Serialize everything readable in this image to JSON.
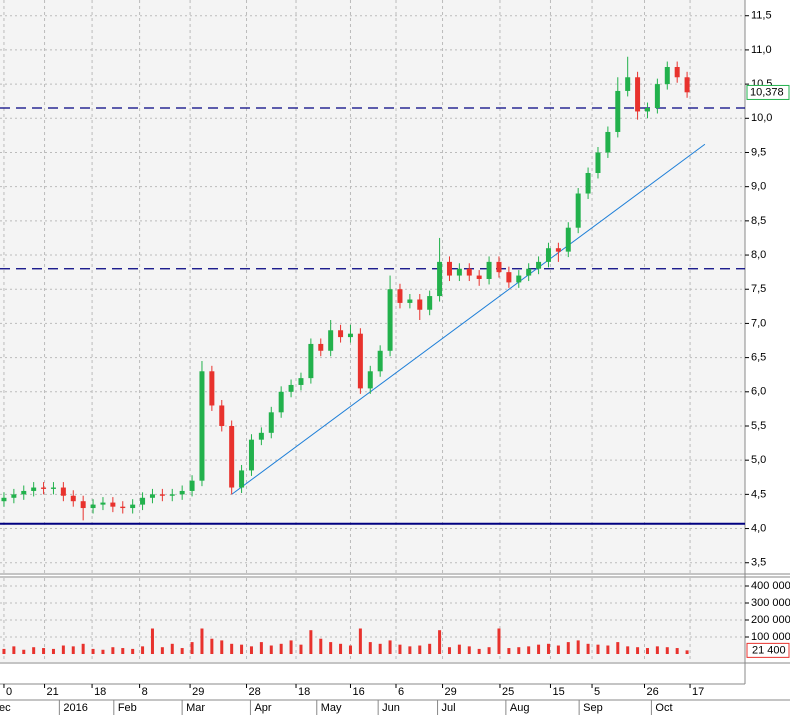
{
  "chart_data": {
    "type": "candlestick",
    "up_color": "#22b14c",
    "down_color": "#e8322d",
    "xlim": [
      -0.4,
      74.85
    ],
    "ylim": [
      3.35,
      11.73
    ],
    "yticks": [
      {
        "value": 3.5,
        "label": "3,5"
      },
      {
        "value": 4.0,
        "label": "4,0"
      },
      {
        "value": 4.5,
        "label": "4,5"
      },
      {
        "value": 5.0,
        "label": "5,0"
      },
      {
        "value": 5.5,
        "label": "5,5"
      },
      {
        "value": 6.0,
        "label": "6,0"
      },
      {
        "value": 6.5,
        "label": "6,5"
      },
      {
        "value": 7.0,
        "label": "7,0"
      },
      {
        "value": 7.5,
        "label": "7,5"
      },
      {
        "value": 8.0,
        "label": "8,0"
      },
      {
        "value": 8.5,
        "label": "8,5"
      },
      {
        "value": 9.0,
        "label": "9,0"
      },
      {
        "value": 9.5,
        "label": "9,5"
      },
      {
        "value": 10.0,
        "label": "10,0"
      },
      {
        "value": 10.5,
        "label": "10,5"
      },
      {
        "value": 11.0,
        "label": "11,0"
      },
      {
        "value": 11.5,
        "label": "11,5"
      }
    ],
    "xticks": [
      {
        "value": 0,
        "label": "0"
      },
      {
        "value": 4.1,
        "label": "21"
      },
      {
        "value": 8.9,
        "label": "18"
      },
      {
        "value": 13.7,
        "label": "8"
      },
      {
        "value": 18.8,
        "label": "29"
      },
      {
        "value": 24.5,
        "label": "28"
      },
      {
        "value": 29.5,
        "label": "18"
      },
      {
        "value": 35,
        "label": "16"
      },
      {
        "value": 39.6,
        "label": "6"
      },
      {
        "value": 44.3,
        "label": "29"
      },
      {
        "value": 50.1,
        "label": "25"
      },
      {
        "value": 55.2,
        "label": "15"
      },
      {
        "value": 59.4,
        "label": "5"
      },
      {
        "value": 64.7,
        "label": "26"
      },
      {
        "value": 69.3,
        "label": "17"
      }
    ],
    "month_ticks": [
      {
        "value": -1.3,
        "label": "Dec"
      },
      {
        "value": 6.0,
        "label": "2016"
      },
      {
        "value": 11.5,
        "label": "Feb"
      },
      {
        "value": 18.4,
        "label": "Mar"
      },
      {
        "value": 25.3,
        "label": "Apr"
      },
      {
        "value": 32,
        "label": "May"
      },
      {
        "value": 38.2,
        "label": "Jun"
      },
      {
        "value": 44.2,
        "label": "Jul"
      },
      {
        "value": 51.1,
        "label": "Aug"
      },
      {
        "value": 58.5,
        "label": "Sep"
      },
      {
        "value": 65.8,
        "label": "Oct"
      }
    ],
    "values": [
      [
        4.4,
        4.53,
        4.32,
        4.45
      ],
      [
        4.45,
        4.58,
        4.37,
        4.5
      ],
      [
        4.5,
        4.63,
        4.42,
        4.55
      ],
      [
        4.55,
        4.68,
        4.47,
        4.6
      ],
      [
        4.6,
        4.68,
        4.5,
        4.58
      ],
      [
        4.58,
        4.68,
        4.5,
        4.6
      ],
      [
        4.6,
        4.68,
        4.4,
        4.48
      ],
      [
        4.48,
        4.56,
        4.32,
        4.4
      ],
      [
        4.4,
        4.48,
        4.12,
        4.3
      ],
      [
        4.3,
        4.43,
        4.22,
        4.35
      ],
      [
        4.35,
        4.46,
        4.27,
        4.38
      ],
      [
        4.38,
        4.46,
        4.24,
        4.32
      ],
      [
        4.32,
        4.4,
        4.22,
        4.3
      ],
      [
        4.3,
        4.43,
        4.22,
        4.35
      ],
      [
        4.35,
        4.53,
        4.27,
        4.45
      ],
      [
        4.45,
        4.58,
        4.37,
        4.5
      ],
      [
        4.5,
        4.58,
        4.4,
        4.48
      ],
      [
        4.48,
        4.58,
        4.4,
        4.5
      ],
      [
        4.5,
        4.63,
        4.42,
        4.55
      ],
      [
        4.55,
        4.78,
        4.47,
        4.7
      ],
      [
        4.7,
        6.45,
        4.62,
        6.3
      ],
      [
        6.3,
        6.38,
        5.72,
        5.8
      ],
      [
        5.8,
        5.88,
        5.42,
        5.5
      ],
      [
        5.5,
        5.58,
        4.5,
        4.6
      ],
      [
        4.6,
        4.93,
        4.52,
        4.85
      ],
      [
        4.85,
        5.38,
        4.77,
        5.3
      ],
      [
        5.3,
        5.48,
        5.22,
        5.4
      ],
      [
        5.4,
        5.78,
        5.32,
        5.7
      ],
      [
        5.7,
        6.08,
        5.62,
        6.0
      ],
      [
        6.0,
        6.18,
        5.92,
        6.1
      ],
      [
        6.1,
        6.28,
        6.02,
        6.2
      ],
      [
        6.2,
        6.78,
        6.12,
        6.7
      ],
      [
        6.7,
        6.78,
        6.52,
        6.6
      ],
      [
        6.6,
        7.05,
        6.52,
        6.9
      ],
      [
        6.9,
        6.98,
        6.72,
        6.8
      ],
      [
        6.8,
        6.98,
        6.72,
        6.85
      ],
      [
        6.85,
        6.93,
        5.97,
        6.05
      ],
      [
        6.05,
        6.38,
        5.97,
        6.3
      ],
      [
        6.3,
        6.68,
        6.22,
        6.6
      ],
      [
        6.6,
        7.7,
        6.52,
        7.5
      ],
      [
        7.5,
        7.58,
        7.22,
        7.3
      ],
      [
        7.3,
        7.43,
        7.22,
        7.35
      ],
      [
        7.35,
        7.43,
        7.05,
        7.2
      ],
      [
        7.2,
        7.48,
        7.12,
        7.4
      ],
      [
        7.4,
        8.25,
        7.32,
        7.9
      ],
      [
        7.9,
        7.98,
        7.62,
        7.7
      ],
      [
        7.7,
        7.88,
        7.62,
        7.8
      ],
      [
        7.8,
        7.88,
        7.62,
        7.7
      ],
      [
        7.7,
        7.78,
        7.55,
        7.65
      ],
      [
        7.65,
        7.98,
        7.57,
        7.9
      ],
      [
        7.9,
        7.98,
        7.67,
        7.75
      ],
      [
        7.75,
        7.83,
        7.52,
        7.6
      ],
      [
        7.6,
        7.78,
        7.52,
        7.7
      ],
      [
        7.7,
        7.88,
        7.62,
        7.8
      ],
      [
        7.8,
        7.98,
        7.72,
        7.9
      ],
      [
        7.9,
        8.18,
        7.82,
        8.1
      ],
      [
        8.1,
        8.18,
        7.9,
        8.05
      ],
      [
        8.05,
        8.48,
        7.97,
        8.4
      ],
      [
        8.4,
        8.98,
        8.32,
        8.9
      ],
      [
        8.9,
        9.28,
        8.82,
        9.2
      ],
      [
        9.2,
        9.58,
        9.12,
        9.5
      ],
      [
        9.5,
        9.88,
        9.42,
        9.8
      ],
      [
        9.8,
        10.6,
        9.72,
        10.4
      ],
      [
        10.4,
        10.9,
        10.32,
        10.6
      ],
      [
        10.6,
        10.68,
        9.98,
        10.1
      ],
      [
        10.1,
        10.23,
        10.0,
        10.15
      ],
      [
        10.15,
        10.58,
        10.07,
        10.5
      ],
      [
        10.5,
        10.83,
        10.42,
        10.75
      ],
      [
        10.75,
        10.83,
        10.52,
        10.6
      ],
      [
        10.6,
        10.68,
        10.3,
        10.38
      ]
    ],
    "levels": [
      {
        "value": 10.15,
        "color": "#000080",
        "style": "dashed"
      },
      {
        "value": 7.8,
        "color": "#000080",
        "style": "dashed"
      },
      {
        "value": 4.07,
        "color": "#000080",
        "style": "solid"
      }
    ],
    "trendlines": [
      {
        "x": [
          23,
          70.8
        ],
        "y": [
          4.5,
          9.62
        ],
        "color": "#1e7fd8"
      }
    ],
    "last_price": {
      "value": 10.378,
      "label": "10,378"
    },
    "volume": {
      "color": "#e8322d",
      "ylim": [
        -47000,
        447000
      ],
      "yticks": [
        {
          "value": 100000,
          "label": "100 000"
        },
        {
          "value": 200000,
          "label": "200 000"
        },
        {
          "value": 300000,
          "label": "300 000"
        },
        {
          "value": 400000,
          "label": "400 000"
        }
      ],
      "values": [
        30000,
        45000,
        25000,
        40000,
        35000,
        30000,
        50000,
        45000,
        60000,
        30000,
        25000,
        40000,
        35000,
        30000,
        45000,
        150000,
        40000,
        60000,
        35000,
        70000,
        150000,
        90000,
        80000,
        60000,
        55000,
        45000,
        70000,
        50000,
        60000,
        80000,
        55000,
        140000,
        90000,
        70000,
        60000,
        50000,
        150000,
        70000,
        60000,
        80000,
        55000,
        45000,
        50000,
        60000,
        140000,
        40000,
        55000,
        45000,
        30000,
        40000,
        150000,
        35000,
        40000,
        45000,
        55000,
        60000,
        50000,
        70000,
        80000,
        60000,
        55000,
        50000,
        70000,
        45000,
        40000,
        35000,
        45000,
        40000,
        35000,
        21400
      ],
      "last_value": {
        "value": 21400,
        "label": "21 400"
      }
    }
  }
}
